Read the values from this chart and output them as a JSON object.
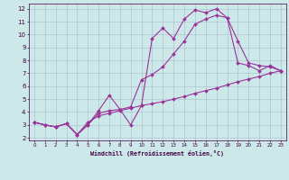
{
  "xlabel": "Windchill (Refroidissement éolien,°C)",
  "xlim": [
    -0.5,
    23.5
  ],
  "ylim": [
    1.8,
    12.4
  ],
  "xticks": [
    0,
    1,
    2,
    3,
    4,
    5,
    6,
    7,
    8,
    9,
    10,
    11,
    12,
    13,
    14,
    15,
    16,
    17,
    18,
    19,
    20,
    21,
    22,
    23
  ],
  "yticks": [
    2,
    3,
    4,
    5,
    6,
    7,
    8,
    9,
    10,
    11,
    12
  ],
  "background_color": "#cce8e8",
  "line_color": "#993399",
  "grid_color": "#aabbcc",
  "line1_x": [
    0,
    1,
    2,
    3,
    4,
    5,
    6,
    7,
    8,
    9,
    10,
    11,
    12,
    13,
    14,
    15,
    16,
    17,
    18,
    19,
    20,
    21,
    22,
    23
  ],
  "line1_y": [
    3.2,
    3.0,
    2.85,
    3.1,
    2.25,
    3.0,
    4.1,
    5.3,
    4.2,
    3.0,
    4.5,
    9.7,
    10.5,
    9.7,
    11.2,
    11.9,
    11.7,
    12.0,
    11.3,
    7.8,
    7.6,
    7.2,
    7.6,
    7.2
  ],
  "line2_x": [
    0,
    1,
    2,
    3,
    4,
    5,
    6,
    7,
    8,
    9,
    10,
    11,
    12,
    13,
    14,
    15,
    16,
    17,
    18,
    19,
    20,
    21,
    22,
    23
  ],
  "line2_y": [
    3.2,
    3.0,
    2.85,
    3.1,
    2.25,
    3.0,
    3.9,
    4.1,
    4.2,
    4.4,
    6.5,
    6.9,
    7.5,
    8.5,
    9.5,
    10.8,
    11.2,
    11.5,
    11.3,
    9.5,
    7.8,
    7.6,
    7.5,
    7.2
  ],
  "line3_x": [
    0,
    1,
    2,
    3,
    4,
    5,
    6,
    7,
    8,
    9,
    10,
    11,
    12,
    13,
    14,
    15,
    16,
    17,
    18,
    19,
    20,
    21,
    22,
    23
  ],
  "line3_y": [
    3.2,
    3.0,
    2.85,
    3.1,
    2.25,
    3.2,
    3.7,
    3.9,
    4.1,
    4.3,
    4.5,
    4.65,
    4.8,
    5.0,
    5.2,
    5.45,
    5.65,
    5.85,
    6.1,
    6.35,
    6.55,
    6.75,
    7.0,
    7.2
  ]
}
